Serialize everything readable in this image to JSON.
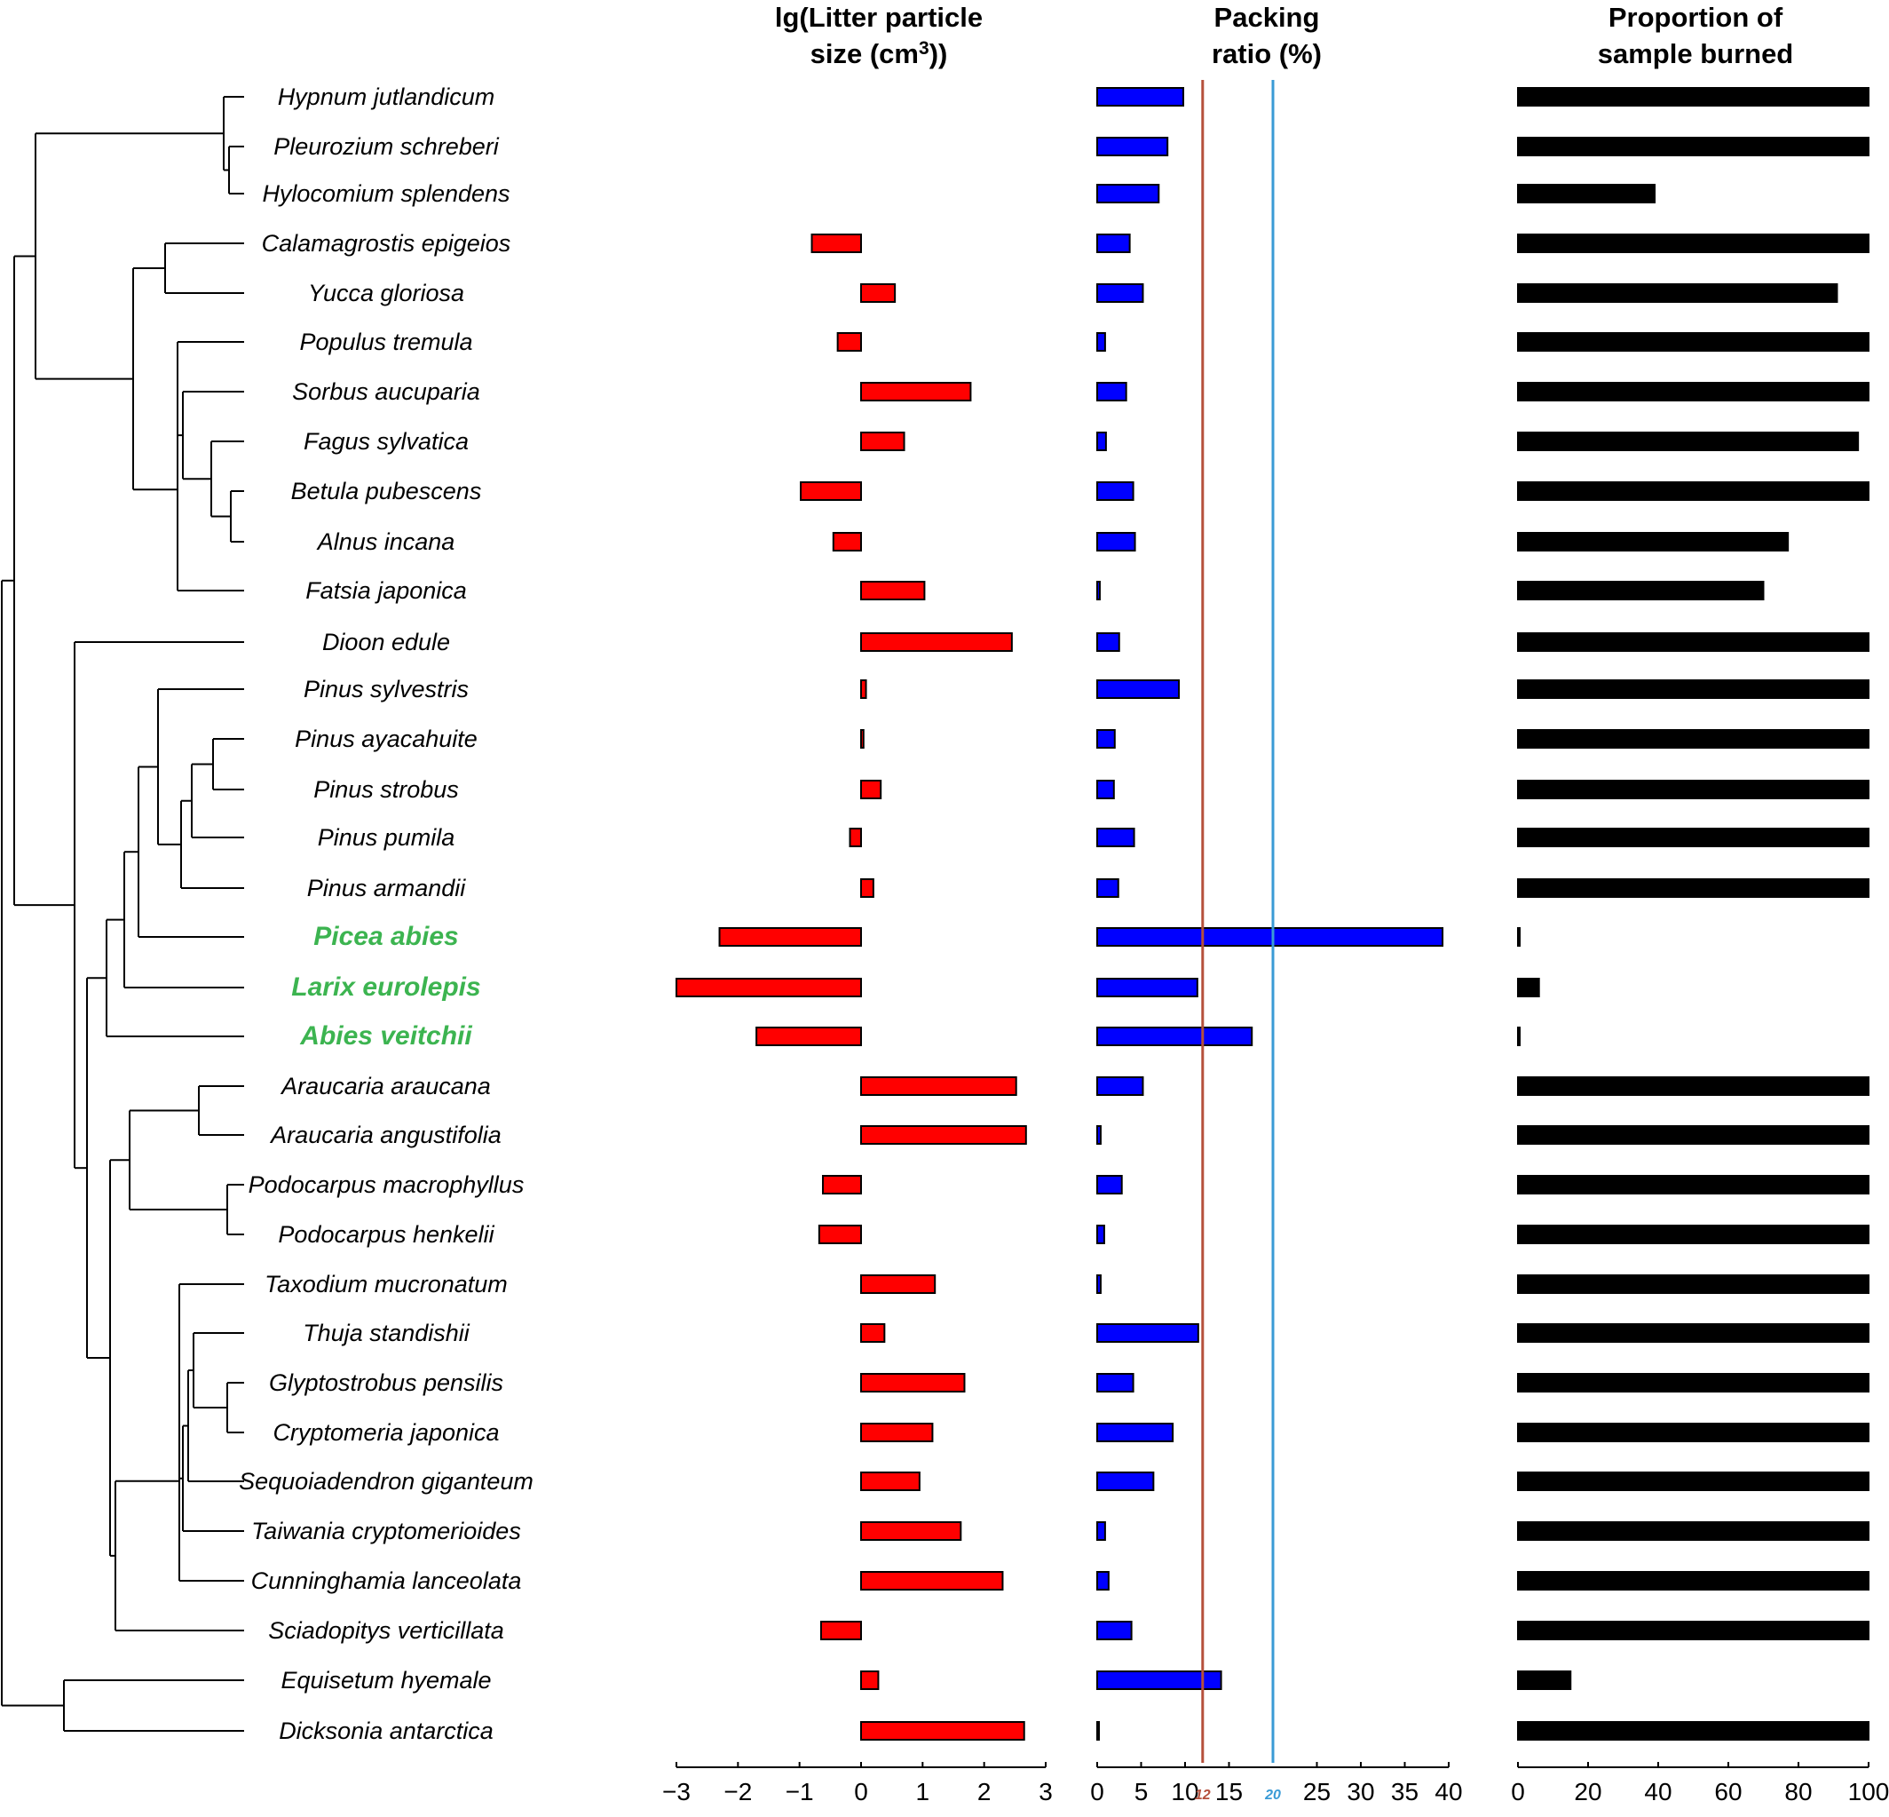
{
  "highlight_color": "#3cb450",
  "species": [
    {
      "name": "Hypnum jutlandicum",
      "highlight": false
    },
    {
      "name": "Pleurozium schreberi",
      "highlight": false
    },
    {
      "name": "Hylocomium splendens",
      "highlight": false
    },
    {
      "name": "Calamagrostis epigeios",
      "highlight": false
    },
    {
      "name": "Yucca gloriosa",
      "highlight": false
    },
    {
      "name": "Populus tremula",
      "highlight": false
    },
    {
      "name": "Sorbus aucuparia",
      "highlight": false
    },
    {
      "name": "Fagus sylvatica",
      "highlight": false
    },
    {
      "name": "Betula pubescens",
      "highlight": false
    },
    {
      "name": "Alnus incana",
      "highlight": false
    },
    {
      "name": "Fatsia japonica",
      "highlight": false
    },
    {
      "name": "Dioon edule",
      "highlight": false
    },
    {
      "name": "Pinus sylvestris",
      "highlight": false
    },
    {
      "name": "Pinus ayacahuite",
      "highlight": false
    },
    {
      "name": "Pinus strobus",
      "highlight": false
    },
    {
      "name": "Pinus pumila",
      "highlight": false
    },
    {
      "name": "Pinus armandii",
      "highlight": false
    },
    {
      "name": "Picea abies",
      "highlight": true
    },
    {
      "name": "Larix eurolepis",
      "highlight": true
    },
    {
      "name": "Abies veitchii",
      "highlight": true
    },
    {
      "name": "Araucaria araucana",
      "highlight": false
    },
    {
      "name": "Araucaria angustifolia",
      "highlight": false
    },
    {
      "name": "Podocarpus macrophyllus",
      "highlight": false
    },
    {
      "name": "Podocarpus henkelii",
      "highlight": false
    },
    {
      "name": "Taxodium mucronatum",
      "highlight": false
    },
    {
      "name": "Thuja standishii",
      "highlight": false
    },
    {
      "name": "Glyptostrobus pensilis",
      "highlight": false
    },
    {
      "name": "Cryptomeria japonica",
      "highlight": false
    },
    {
      "name": "Sequoiadendron giganteum",
      "highlight": false
    },
    {
      "name": "Taiwania cryptomerioides",
      "highlight": false
    },
    {
      "name": "Cunninghamia lanceolata",
      "highlight": false
    },
    {
      "name": "Sciadopitys verticillata",
      "highlight": false
    },
    {
      "name": "Equisetum hyemale",
      "highlight": false
    },
    {
      "name": "Dicksonia antarctica",
      "highlight": false
    }
  ],
  "chart_data": [
    {
      "type": "bar",
      "orientation": "horizontal",
      "title_line1": "lg(Litter particle",
      "title_line2_prefix": "size (cm",
      "title_line2_sup": "3",
      "title_line2_suffix": "))",
      "xlim": [
        -3,
        3
      ],
      "ticks": [
        "−3",
        "−2",
        "−1",
        "0",
        "1",
        "2",
        "3"
      ],
      "tick_values": [
        -3,
        -2,
        -1,
        0,
        1,
        2,
        3
      ],
      "color": "#ff0000",
      "values": [
        null,
        null,
        null,
        -0.8,
        0.55,
        -0.38,
        1.78,
        0.7,
        -0.98,
        -0.45,
        1.03,
        2.45,
        0.08,
        0.04,
        0.32,
        -0.18,
        0.2,
        -2.3,
        -3.0,
        -1.7,
        2.52,
        2.68,
        -0.62,
        -0.68,
        1.2,
        0.38,
        1.68,
        1.16,
        0.95,
        1.62,
        2.3,
        -0.65,
        0.28,
        2.65
      ]
    },
    {
      "type": "bar",
      "orientation": "horizontal",
      "title_line1": "Packing",
      "title_line2": "ratio (%)",
      "xlim": [
        0,
        40
      ],
      "ticks": [
        "0",
        "5",
        "10",
        "15",
        "25",
        "30",
        "35",
        "40"
      ],
      "tick_values": [
        0,
        5,
        10,
        15,
        25,
        30,
        35,
        40
      ],
      "color": "#0000ff",
      "reference_lines": [
        {
          "value": 12,
          "label": "12",
          "color": "#b5503c"
        },
        {
          "value": 20,
          "label": "20",
          "color": "#3a9bd6"
        }
      ],
      "values": [
        9.8,
        8.0,
        7.0,
        3.7,
        5.2,
        0.9,
        3.3,
        1.0,
        4.1,
        4.3,
        0.3,
        2.5,
        9.3,
        2.0,
        1.9,
        4.2,
        2.4,
        39.3,
        11.4,
        17.6,
        5.2,
        0.4,
        2.8,
        0.8,
        0.4,
        11.5,
        4.1,
        8.6,
        6.4,
        0.9,
        1.3,
        3.9,
        14.1,
        0.1
      ]
    },
    {
      "type": "bar",
      "orientation": "horizontal",
      "title_line1": "Proportion of",
      "title_line2": "sample burned",
      "xlim": [
        0,
        100
      ],
      "ticks": [
        "0",
        "20",
        "40",
        "60",
        "80",
        "100"
      ],
      "tick_values": [
        0,
        20,
        40,
        60,
        80,
        100
      ],
      "color": "#000000",
      "values": [
        100,
        100,
        39,
        100,
        91,
        100,
        100,
        97,
        100,
        77,
        70,
        100,
        100,
        100,
        100,
        100,
        100,
        0.5,
        6,
        0.5,
        100,
        100,
        100,
        100,
        100,
        100,
        100,
        100,
        100,
        100,
        100,
        100,
        15,
        100
      ]
    }
  ]
}
